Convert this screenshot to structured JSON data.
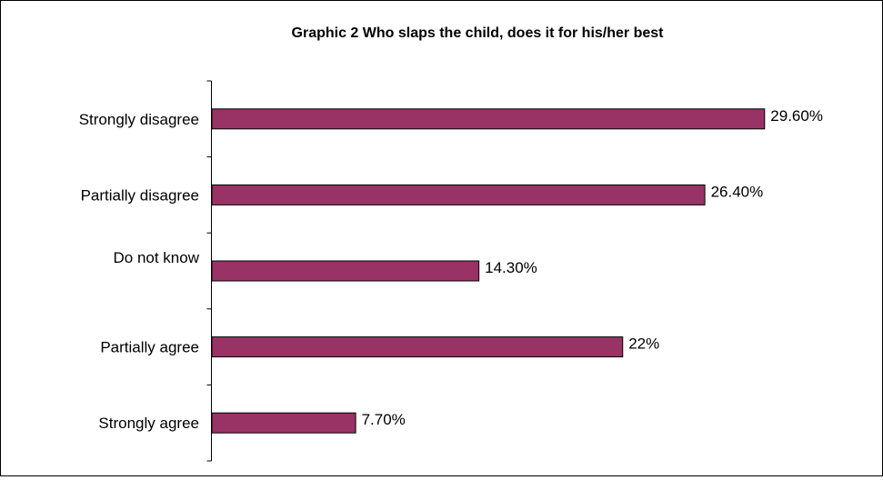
{
  "chart_data": {
    "type": "bar",
    "orientation": "horizontal",
    "title": "Graphic 2 Who slaps the child, does it for his/her best",
    "xlabel": "",
    "ylabel": "",
    "categories": [
      "Strongly disagree",
      "Partially disagree",
      "Do not  know",
      "Partially agree",
      "Strongly agree"
    ],
    "values": [
      29.6,
      26.4,
      14.3,
      22,
      7.7
    ],
    "data_labels": [
      "29.60%",
      "26.40%",
      "14.30%",
      "22%",
      "7.70%"
    ],
    "xlim": [
      0,
      30
    ],
    "bar_color": "#993366",
    "grid": false,
    "legend": "none"
  }
}
